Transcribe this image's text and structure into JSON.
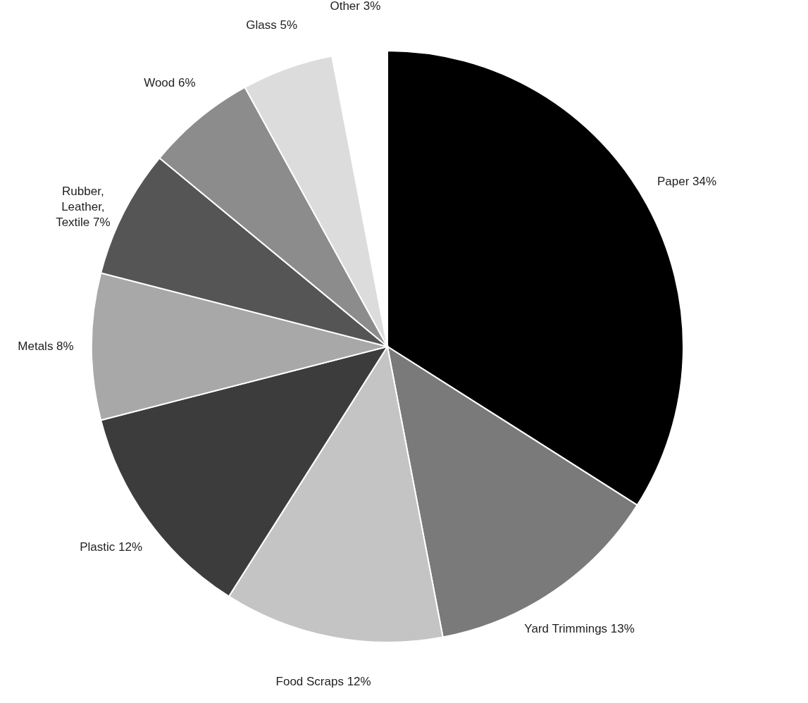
{
  "chart_data": {
    "type": "pie",
    "categories": [
      "Paper",
      "Yard Trimmings",
      "Food Scraps",
      "Plastic",
      "Metals",
      "Rubber, Leather, Textile",
      "Wood",
      "Glass",
      "Other"
    ],
    "values": [
      34,
      13,
      12,
      12,
      8,
      7,
      6,
      5,
      3
    ],
    "value_labels": [
      "34%",
      "13%",
      "12%",
      "12%",
      "8%",
      "7%",
      "6%",
      "5%",
      "3%"
    ],
    "colors": [
      "#000000",
      "#7a7a7a",
      "#c4c4c4",
      "#3c3c3c",
      "#a8a8a8",
      "#555555",
      "#8c8c8c",
      "#dcdcdc",
      "#ffffff"
    ]
  }
}
